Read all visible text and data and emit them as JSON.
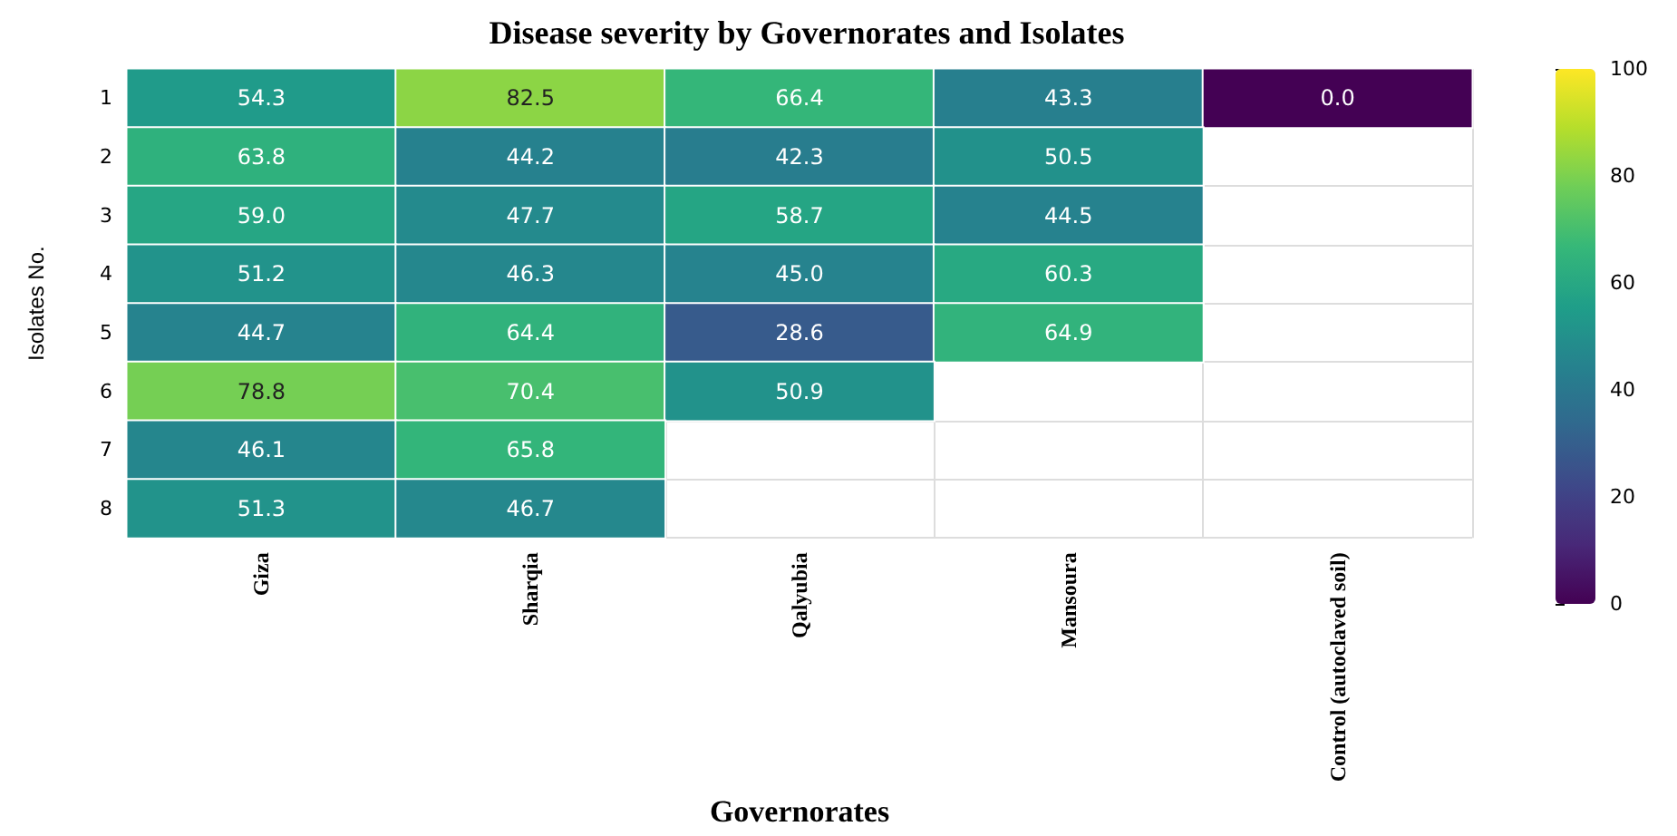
{
  "chart_data": {
    "type": "heatmap",
    "title": "Disease severity by Governorates and Isolates",
    "xlabel": "Governorates",
    "ylabel": "Isolates No.",
    "categories": [
      "Giza",
      "Sharqia",
      "Qalyubia",
      "Mansoura",
      "Control (autoclaved soil)"
    ],
    "y_categories": [
      "1",
      "2",
      "3",
      "4",
      "5",
      "6",
      "7",
      "8"
    ],
    "cells": [
      [
        54.3,
        82.5,
        66.4,
        43.3,
        0.0
      ],
      [
        63.8,
        44.2,
        42.3,
        50.5,
        null
      ],
      [
        59.0,
        47.7,
        58.7,
        44.5,
        null
      ],
      [
        51.2,
        46.3,
        45.0,
        60.3,
        null
      ],
      [
        44.7,
        64.4,
        28.6,
        64.9,
        null
      ],
      [
        78.8,
        70.4,
        50.9,
        null,
        null
      ],
      [
        46.1,
        65.8,
        null,
        null,
        null
      ],
      [
        51.3,
        46.7,
        null,
        null,
        null
      ]
    ],
    "cell_labels": [
      [
        "54.3",
        "82.5",
        "66.4",
        "43.3",
        "0.0"
      ],
      [
        "63.8",
        "44.2",
        "42.3",
        "50.5",
        null
      ],
      [
        "59.0",
        "47.7",
        "58.7",
        "44.5",
        null
      ],
      [
        "51.2",
        "46.3",
        "45.0",
        "60.3",
        null
      ],
      [
        "44.7",
        "64.4",
        "28.6",
        "64.9",
        null
      ],
      [
        "78.8",
        "70.4",
        "50.9",
        null,
        null
      ],
      [
        "46.1",
        "65.8",
        null,
        null,
        null
      ],
      [
        "51.3",
        "46.7",
        null,
        null,
        null
      ]
    ],
    "clim": [
      0,
      100
    ],
    "cticks": [
      0,
      20,
      40,
      60,
      80,
      100
    ],
    "grid": true
  }
}
